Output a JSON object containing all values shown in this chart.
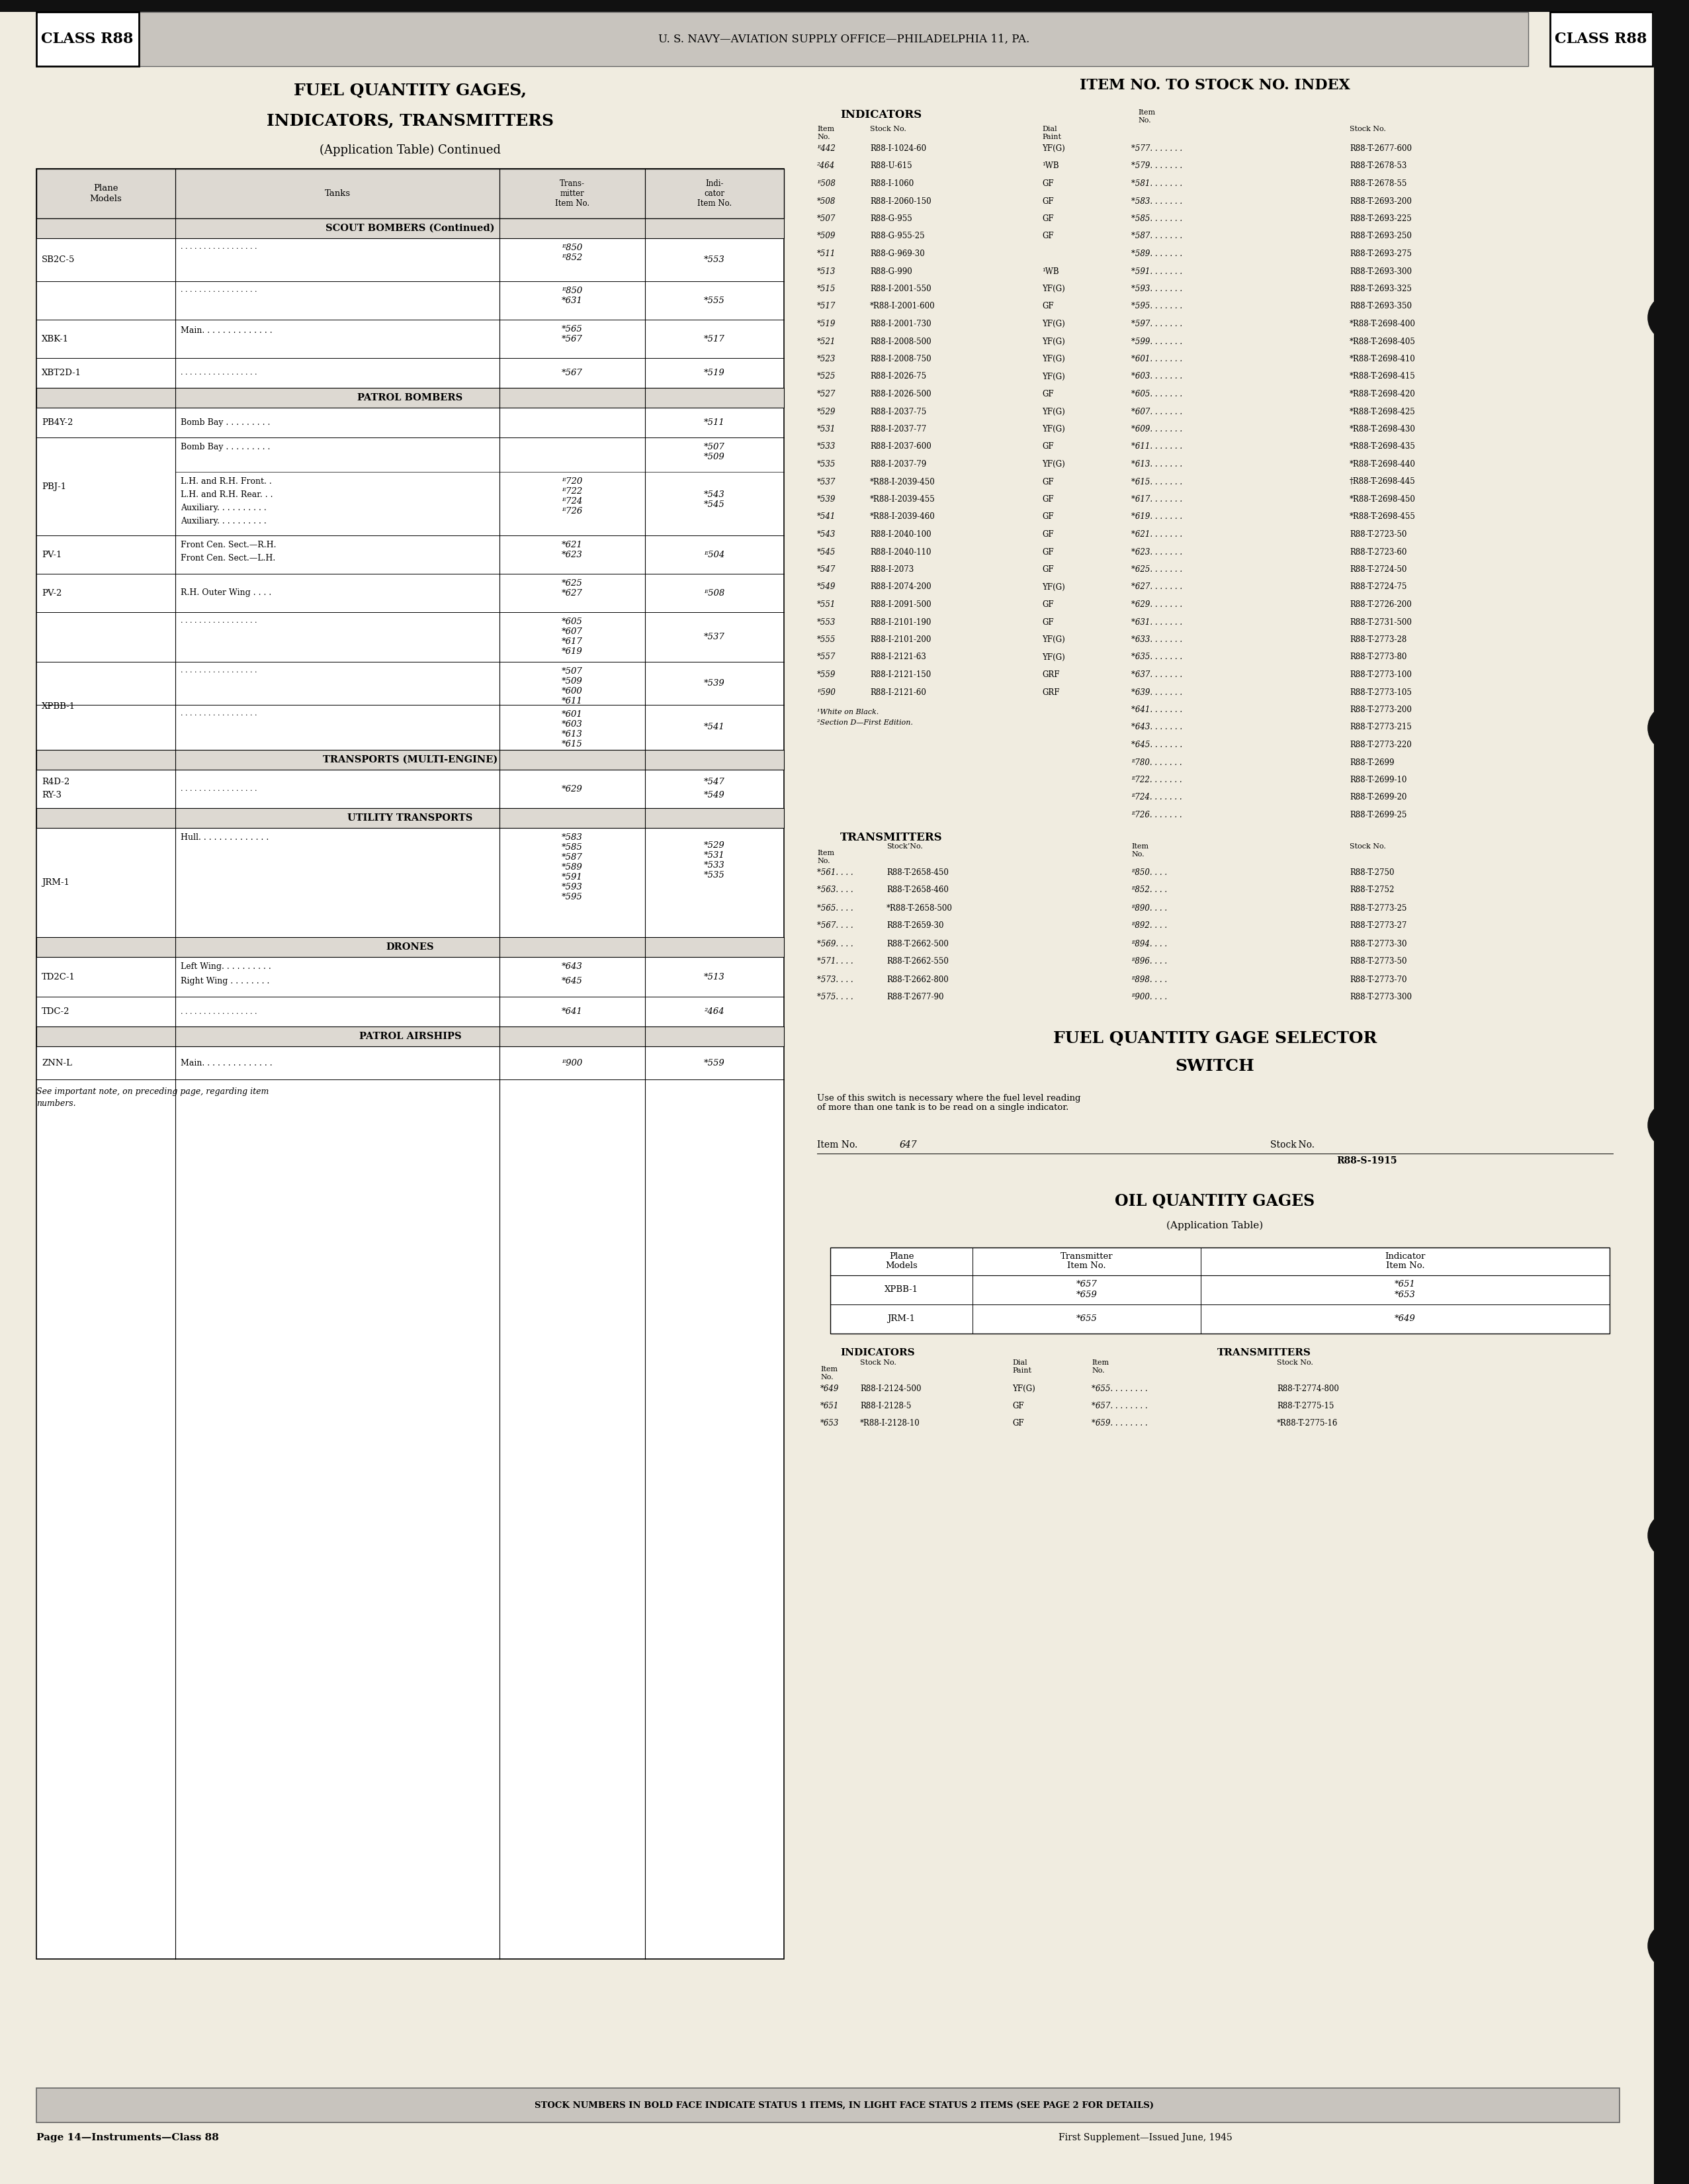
{
  "page_bg": "#f0ece0",
  "header_text": "U. S. NAVY—AVIATION SUPPLY OFFICE—PHILADELPHIA 11, PA.",
  "class_label": "CLASS R88",
  "left_title_line1": "FUEL QUANTITY GAGES,",
  "left_title_line2": "INDICATORS, TRANSMITTERS",
  "left_subtitle": "(Application Table) Continued",
  "right_title": "ITEM NO. TO STOCK NO. INDEX",
  "footer_note": "STOCK NUMBERS IN BOLD FACE INDICATE STATUS 1 ITEMS, IN LIGHT FACE STATUS 2 ITEMS (SEE PAGE 2 FOR DETAILS)",
  "page_label": "Page 14—Instruments—Class 88",
  "supplement_label": "First Supplement—Issued June, 1945",
  "ind_data": [
    [
      "ᴱ442",
      "R88-I-1024-60",
      "YF(G)"
    ],
    [
      "²464",
      "R88-U-615",
      "¹WB"
    ],
    [
      "ᴱ508",
      "R88-I-1060",
      "GF"
    ],
    [
      "*508",
      "R88-I-2060-150",
      "GF"
    ],
    [
      "*507",
      "R88-G-955",
      "GF"
    ],
    [
      "*509",
      "R88-G-955-25",
      "GF"
    ],
    [
      "*511",
      "R88-G-969-30",
      ""
    ],
    [
      "*513",
      "R88-G-990",
      "¹WB"
    ],
    [
      "*515",
      "R88-I-2001-550",
      "YF(G)"
    ],
    [
      "*517",
      "*R88-I-2001-600",
      "GF"
    ],
    [
      "*519",
      "R88-I-2001-730",
      "YF(G)"
    ],
    [
      "*521",
      "R88-I-2008-500",
      "YF(G)"
    ],
    [
      "*523",
      "R88-I-2008-750",
      "YF(G)"
    ],
    [
      "*525",
      "R88-I-2026-75",
      "YF(G)"
    ],
    [
      "*527",
      "R88-I-2026-500",
      "GF"
    ],
    [
      "*529",
      "R88-I-2037-75",
      "YF(G)"
    ],
    [
      "*531",
      "R88-I-2037-77",
      "YF(G)"
    ],
    [
      "*533",
      "R88-I-2037-600",
      "GF"
    ],
    [
      "*535",
      "R88-I-2037-79",
      "YF(G)"
    ],
    [
      "*537",
      "*R88-I-2039-450",
      "GF"
    ],
    [
      "*539",
      "*R88-I-2039-455",
      "GF"
    ],
    [
      "*541",
      "*R88-I-2039-460",
      "GF"
    ],
    [
      "*543",
      "R88-I-2040-100",
      "GF"
    ],
    [
      "*545",
      "R88-I-2040-110",
      "GF"
    ],
    [
      "*547",
      "R88-I-2073",
      "GF"
    ],
    [
      "*549",
      "R88-I-2074-200",
      "YF(G)"
    ],
    [
      "*551",
      "R88-I-2091-500",
      "GF"
    ],
    [
      "*553",
      "R88-I-2101-190",
      "GF"
    ],
    [
      "*555",
      "R88-I-2101-200",
      "YF(G)"
    ],
    [
      "*557",
      "R88-I-2121-63",
      "YF(G)"
    ],
    [
      "*559",
      "R88-I-2121-150",
      "GRF"
    ],
    [
      "ᴱ590",
      "R88-I-2121-60",
      "GRF"
    ]
  ],
  "ind_data_right": [
    [
      "*577. . . . . . .",
      "R88-T-2677-600"
    ],
    [
      "*579. . . . . . .",
      "R88-T-2678-53"
    ],
    [
      "*581. . . . . . .",
      "R88-T-2678-55"
    ],
    [
      "*583. . . . . . .",
      "R88-T-2693-200"
    ],
    [
      "*585. . . . . . .",
      "R88-T-2693-225"
    ],
    [
      "*587. . . . . . .",
      "R88-T-2693-250"
    ],
    [
      "*589. . . . . . .",
      "R88-T-2693-275"
    ],
    [
      "*591. . . . . . .",
      "R88-T-2693-300"
    ],
    [
      "*593. . . . . . .",
      "R88-T-2693-325"
    ],
    [
      "*595. . . . . . .",
      "R88-T-2693-350"
    ],
    [
      "*597. . . . . . .",
      "*R88-T-2698-400"
    ],
    [
      "*599. . . . . . .",
      "*R88-T-2698-405"
    ],
    [
      "*601. . . . . . .",
      "*R88-T-2698-410"
    ],
    [
      "*603. . . . . . .",
      "*R88-T-2698-415"
    ],
    [
      "*605. . . . . . .",
      "*R88-T-2698-420"
    ],
    [
      "*607. . . . . . .",
      "*R88-T-2698-425"
    ],
    [
      "*609. . . . . . .",
      "*R88-T-2698-430"
    ],
    [
      "*611. . . . . . .",
      "*R88-T-2698-435"
    ],
    [
      "*613. . . . . . .",
      "*R88-T-2698-440"
    ],
    [
      "*615. . . . . . .",
      "†R88-T-2698-445"
    ],
    [
      "*617. . . . . . .",
      "*R88-T-2698-450"
    ],
    [
      "*619. . . . . . .",
      "*R88-T-2698-455"
    ],
    [
      "*621. . . . . . .",
      "R88-T-2723-50"
    ],
    [
      "*623. . . . . . .",
      "R88-T-2723-60"
    ],
    [
      "*625. . . . . . .",
      "R88-T-2724-50"
    ],
    [
      "*627. . . . . . .",
      "R88-T-2724-75"
    ],
    [
      "*629. . . . . . .",
      "R88-T-2726-200"
    ],
    [
      "*631. . . . . . .",
      "R88-T-2731-500"
    ],
    [
      "*633. . . . . . .",
      "R88-T-2773-28"
    ],
    [
      "*635. . . . . . .",
      "R88-T-2773-80"
    ],
    [
      "*637. . . . . . .",
      "R88-T-2773-100"
    ],
    [
      "*639. . . . . . .",
      "R88-T-2773-105"
    ],
    [
      "*641. . . . . . .",
      "R88-T-2773-200"
    ],
    [
      "*643. . . . . . .",
      "R88-T-2773-215"
    ],
    [
      "*645. . . . . . .",
      "R88-T-2773-220"
    ],
    [
      "ᴱ780. . . . . . .",
      "R88-T-2699"
    ],
    [
      "ᴱ722. . . . . . .",
      "R88-T-2699-10"
    ],
    [
      "ᴱ724. . . . . . .",
      "R88-T-2699-20"
    ],
    [
      "ᴱ726. . . . . . .",
      "R88-T-2699-25"
    ]
  ],
  "trans_data_left": [
    [
      "*561. . . .",
      "R88-T-2658-450"
    ],
    [
      "*563. . . .",
      "R88-T-2658-460"
    ],
    [
      "*565. . . .",
      "*R88-T-2658-500"
    ],
    [
      "*567. . . .",
      "R88-T-2659-30"
    ],
    [
      "*569. . . .",
      "R88-T-2662-500"
    ],
    [
      "*571. . . .",
      "R88-T-2662-550"
    ],
    [
      "*573. . . .",
      "R88-T-2662-800"
    ],
    [
      "*575. . . .",
      "R88-T-2677-90"
    ]
  ],
  "trans_data_right": [
    [
      "ᴱ850. . . .",
      "R88-T-2750"
    ],
    [
      "ᴱ852. . . .",
      "R88-T-2752"
    ],
    [
      "ᴱ890. . . .",
      "R88-T-2773-25"
    ],
    [
      "ᴱ892. . . .",
      "R88-T-2773-27"
    ],
    [
      "ᴱ894. . . .",
      "R88-T-2773-30"
    ],
    [
      "ᴱ896. . . .",
      "R88-T-2773-50"
    ],
    [
      "ᴱ898. . . .",
      "R88-T-2773-70"
    ],
    [
      "ᴱ900. . . .",
      "R88-T-2773-300"
    ]
  ]
}
